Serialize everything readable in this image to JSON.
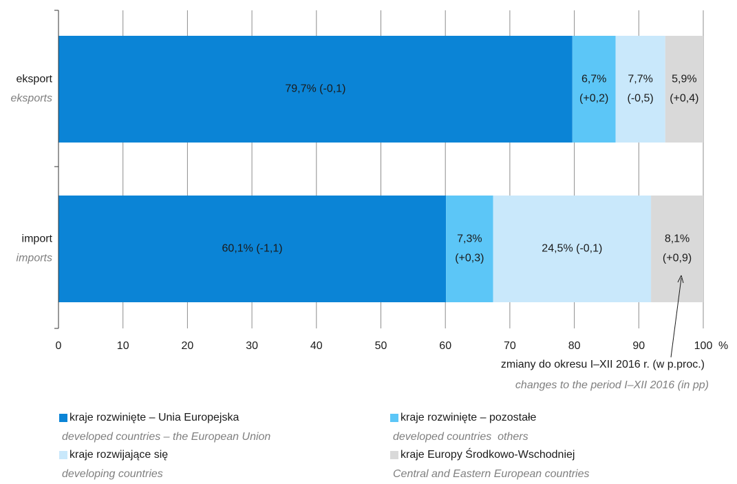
{
  "chart_data": {
    "type": "stacked_bar_horizontal",
    "categories": [
      "eksport",
      "import"
    ],
    "categories_en": [
      "eksports",
      "imports"
    ],
    "series": [
      {
        "name": "kraje rozwinięte – Unia Europejska",
        "name_en": "developed countries – the European Union",
        "color": "#0b84d6",
        "values": [
          79.7,
          60.1
        ],
        "value_labels": [
          "79,7% (-0,1)",
          "60,1% (-1,1)"
        ]
      },
      {
        "name": "kraje rozwinięte – pozostałe",
        "name_en": "developed countries  others",
        "color": "#5cc6f7",
        "values": [
          6.7,
          7.3
        ],
        "value_labels": [
          [
            "6,7%",
            "(+0,2)"
          ],
          [
            "7,3%",
            "(+0,3)"
          ]
        ]
      },
      {
        "name": "kraje rozwijające się",
        "name_en": "developing countries",
        "color": "#c9e8fb",
        "values": [
          7.7,
          24.5
        ],
        "value_labels": [
          [
            "7,7%",
            "(-0,5)"
          ],
          "24,5% (-0,1)"
        ]
      },
      {
        "name": "kraje Europy Środkowo-Wschodniej",
        "name_en": "Central and Eastern European countries",
        "color": "#d9d9d9",
        "values": [
          5.9,
          8.1
        ],
        "value_labels": [
          [
            "5,9%",
            "(+0,4)"
          ],
          [
            "8,1%",
            "(+0,9)"
          ]
        ]
      }
    ],
    "xlim": [
      0,
      100
    ],
    "xticks": [
      0,
      10,
      20,
      30,
      40,
      50,
      60,
      70,
      80,
      90,
      100
    ],
    "x_unit": "%",
    "grid": true,
    "annotation": "zmiany do okresu I–XII 2016 r. (w p.proc.)",
    "annotation_en": "changes to the period I–XII 2016 (in pp)"
  }
}
